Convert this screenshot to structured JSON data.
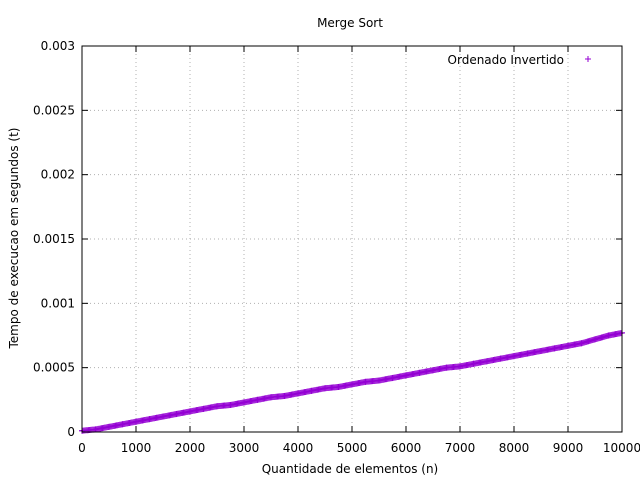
{
  "chart_data": {
    "type": "scatter",
    "title": "Merge Sort",
    "xlabel": "Quantidade de elementos (n)",
    "ylabel": "Tempo de execucao em segundos (t)",
    "xlim": [
      0,
      10000
    ],
    "ylim": [
      0,
      0.003
    ],
    "x_ticks": [
      0,
      1000,
      2000,
      3000,
      4000,
      5000,
      6000,
      7000,
      8000,
      9000,
      10000
    ],
    "x_tick_labels": [
      "0",
      "1000",
      "2000",
      "3000",
      "4000",
      "5000",
      "6000",
      "7000",
      "8000",
      "9000",
      "10000"
    ],
    "y_ticks": [
      0,
      0.0005,
      0.001,
      0.0015,
      0.002,
      0.0025,
      0.003
    ],
    "y_tick_labels": [
      "0",
      "0.0005",
      "0.001",
      "0.0015",
      "0.002",
      "0.0025",
      "0.003"
    ],
    "grid": true,
    "legend_position": "top-right",
    "series": [
      {
        "name": "Ordenado Invertido",
        "color": "#9400d3",
        "marker": "plus",
        "x": [
          0,
          250,
          500,
          750,
          1000,
          1250,
          1500,
          1750,
          2000,
          2250,
          2500,
          2750,
          3000,
          3250,
          3500,
          3750,
          4000,
          4250,
          4500,
          4750,
          5000,
          5250,
          5500,
          5750,
          6000,
          6250,
          6500,
          6750,
          7000,
          7250,
          7500,
          7750,
          8000,
          8250,
          8500,
          8750,
          9000,
          9250,
          9500,
          9750,
          10000
        ],
        "y": [
          1e-05,
          2e-05,
          4e-05,
          6e-05,
          8e-05,
          0.0001,
          0.00012,
          0.00014,
          0.00016,
          0.00018,
          0.0002,
          0.00021,
          0.00023,
          0.00025,
          0.00027,
          0.00028,
          0.0003,
          0.00032,
          0.00034,
          0.00035,
          0.00037,
          0.00039,
          0.0004,
          0.00042,
          0.00044,
          0.00046,
          0.00048,
          0.0005,
          0.00051,
          0.00053,
          0.00055,
          0.00057,
          0.00059,
          0.00061,
          0.00063,
          0.00065,
          0.00067,
          0.00069,
          0.00072,
          0.00075,
          0.00077
        ]
      }
    ]
  }
}
